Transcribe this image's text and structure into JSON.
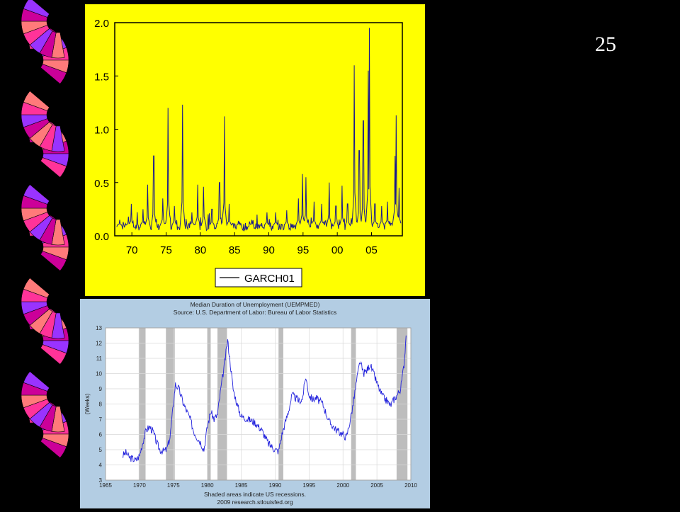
{
  "slide": {
    "number": "25"
  },
  "colors": {
    "background": "#000000",
    "panel_yellow": "#ffff00",
    "garch_line": "#1a1a8c",
    "panel_blue": "#b3cde3",
    "uemp_line": "#2222dd",
    "recession": "#bdbdbd",
    "fan_colors": [
      "#ff3399",
      "#ff7a7a",
      "#cc0099",
      "#9933ff"
    ]
  },
  "chart_data": [
    {
      "type": "line",
      "title": "",
      "xlabel": "",
      "ylabel": "",
      "xlim": [
        1967.5,
        2009.5
      ],
      "ylim": [
        0.0,
        2.0
      ],
      "x_ticks": [
        1970,
        1975,
        1980,
        1985,
        1990,
        1995,
        2000,
        2005
      ],
      "x_tick_labels": [
        "70",
        "75",
        "80",
        "85",
        "90",
        "95",
        "00",
        "05"
      ],
      "y_ticks": [
        0.0,
        0.5,
        1.0,
        1.5,
        2.0
      ],
      "y_tick_labels": [
        "0.0",
        "0.5",
        "1.0",
        "1.5",
        "2.0"
      ],
      "legend": {
        "entries": [
          "GARCH01"
        ],
        "placement": "bottom-center"
      },
      "grid": false,
      "series": [
        {
          "name": "GARCH01",
          "baseline_level": 0.1,
          "spikes": [
            {
              "x": 1968.2,
              "y": 0.15
            },
            {
              "x": 1969.5,
              "y": 0.18
            },
            {
              "x": 1969.9,
              "y": 0.3
            },
            {
              "x": 1971.6,
              "y": 0.25
            },
            {
              "x": 1972.3,
              "y": 0.48
            },
            {
              "x": 1973.2,
              "y": 0.75
            },
            {
              "x": 1974.5,
              "y": 0.35
            },
            {
              "x": 1975.3,
              "y": 1.2
            },
            {
              "x": 1976.2,
              "y": 0.28
            },
            {
              "x": 1977.4,
              "y": 1.23
            },
            {
              "x": 1978.8,
              "y": 0.22
            },
            {
              "x": 1979.6,
              "y": 0.48
            },
            {
              "x": 1980.5,
              "y": 0.46
            },
            {
              "x": 1981.7,
              "y": 0.25
            },
            {
              "x": 1982.8,
              "y": 0.5
            },
            {
              "x": 1983.5,
              "y": 1.12
            },
            {
              "x": 1984.2,
              "y": 0.3
            },
            {
              "x": 1985.6,
              "y": 0.14
            },
            {
              "x": 1987.5,
              "y": 0.15
            },
            {
              "x": 1989.7,
              "y": 0.22
            },
            {
              "x": 1991.0,
              "y": 0.22
            },
            {
              "x": 1992.6,
              "y": 0.24
            },
            {
              "x": 1994.3,
              "y": 0.35
            },
            {
              "x": 1994.9,
              "y": 0.58
            },
            {
              "x": 1995.4,
              "y": 0.55
            },
            {
              "x": 1996.6,
              "y": 0.32
            },
            {
              "x": 1997.7,
              "y": 0.3
            },
            {
              "x": 1998.8,
              "y": 0.5
            },
            {
              "x": 1999.8,
              "y": 0.28
            },
            {
              "x": 2000.7,
              "y": 0.47
            },
            {
              "x": 2001.5,
              "y": 0.3
            },
            {
              "x": 2002.5,
              "y": 1.6
            },
            {
              "x": 2003.2,
              "y": 0.8
            },
            {
              "x": 2003.8,
              "y": 1.08
            },
            {
              "x": 2004.5,
              "y": 1.55
            },
            {
              "x": 2004.7,
              "y": 1.95
            },
            {
              "x": 2005.5,
              "y": 0.3
            },
            {
              "x": 2006.5,
              "y": 0.28
            },
            {
              "x": 2007.3,
              "y": 0.32
            },
            {
              "x": 2008.4,
              "y": 0.75
            },
            {
              "x": 2008.6,
              "y": 1.13
            },
            {
              "x": 2009.0,
              "y": 0.45
            }
          ]
        }
      ]
    },
    {
      "type": "line",
      "title": "Median Duration of Unemployment (UEMPMED)",
      "subtitle": "Source: U.S. Department of Labor: Bureau of Labor Statistics",
      "xlabel": "",
      "ylabel": "(Weeks)",
      "xlim": [
        1965,
        2010
      ],
      "ylim": [
        3,
        13
      ],
      "x_ticks": [
        1965,
        1970,
        1975,
        1980,
        1985,
        1990,
        1995,
        2000,
        2005,
        2010
      ],
      "y_ticks": [
        3,
        4,
        5,
        6,
        7,
        8,
        9,
        10,
        11,
        12,
        13
      ],
      "grid": true,
      "recessions": [
        [
          1969.9,
          1970.9
        ],
        [
          1973.9,
          1975.2
        ],
        [
          1980.0,
          1980.5
        ],
        [
          1981.5,
          1982.9
        ],
        [
          1990.5,
          1991.2
        ],
        [
          2001.2,
          2001.9
        ],
        [
          2007.9,
          2009.5
        ]
      ],
      "footnote": "Shaded areas indicate US recessions.",
      "credit": "2009 research.stlouisfed.org",
      "series": [
        {
          "x": [
            1967.5,
            1968.0,
            1968.5,
            1969.0,
            1969.5,
            1970.0,
            1970.5,
            1971.0,
            1971.5,
            1972.0,
            1972.5,
            1973.0,
            1973.5,
            1974.0,
            1974.5,
            1975.0,
            1975.3,
            1975.8,
            1976.5,
            1977.0,
            1977.5,
            1978.0,
            1978.5,
            1979.0,
            1979.5,
            1980.0,
            1980.5,
            1981.0,
            1981.5,
            1982.0,
            1982.5,
            1983.0,
            1983.3,
            1983.8,
            1984.5,
            1985.0,
            1986.0,
            1987.0,
            1988.0,
            1989.0,
            1990.0,
            1990.5,
            1991.0,
            1991.5,
            1992.0,
            1992.5,
            1993.0,
            1993.5,
            1994.0,
            1994.5,
            1995.0,
            1995.5,
            1996.0,
            1997.0,
            1998.0,
            1999.0,
            2000.0,
            2000.5,
            2001.0,
            2001.5,
            2002.0,
            2002.5,
            2003.0,
            2003.5,
            2004.0,
            2004.5,
            2005.0,
            2005.5,
            2006.0,
            2006.5,
            2007.0,
            2007.5,
            2008.0,
            2008.5,
            2009.0,
            2009.3
          ],
          "y": [
            4.6,
            4.8,
            4.5,
            4.4,
            4.3,
            4.6,
            5.5,
            6.3,
            6.5,
            6.2,
            5.5,
            5.0,
            4.9,
            5.0,
            5.8,
            8.0,
            9.3,
            9.0,
            8.0,
            7.5,
            7.0,
            6.2,
            5.8,
            5.5,
            5.0,
            6.5,
            7.5,
            7.0,
            7.3,
            9.0,
            10.5,
            12.2,
            11.0,
            9.0,
            7.8,
            7.2,
            7.0,
            6.8,
            6.3,
            5.4,
            5.0,
            4.9,
            6.0,
            6.8,
            7.6,
            8.6,
            8.4,
            8.2,
            8.3,
            9.8,
            8.6,
            8.3,
            8.4,
            8.0,
            6.8,
            6.3,
            6.0,
            5.8,
            6.8,
            8.0,
            9.5,
            10.8,
            10.0,
            10.2,
            10.6,
            10.0,
            9.4,
            8.8,
            8.4,
            8.2,
            7.9,
            8.3,
            8.6,
            9.0,
            10.6,
            12.5
          ]
        }
      ]
    }
  ]
}
